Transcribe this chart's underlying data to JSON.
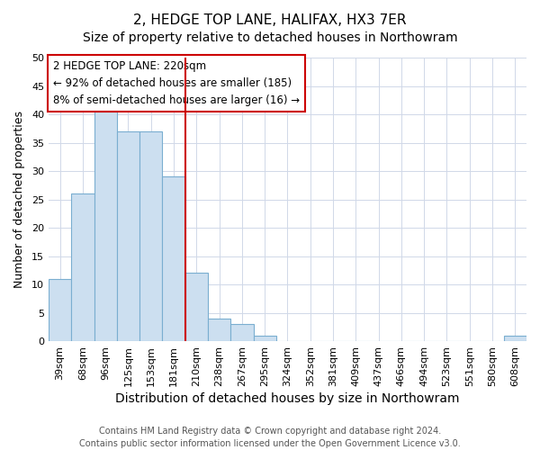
{
  "title": "2, HEDGE TOP LANE, HALIFAX, HX3 7ER",
  "subtitle": "Size of property relative to detached houses in Northowram",
  "xlabel": "Distribution of detached houses by size in Northowram",
  "ylabel": "Number of detached properties",
  "footnote1": "Contains HM Land Registry data © Crown copyright and database right 2024.",
  "footnote2": "Contains public sector information licensed under the Open Government Licence v3.0.",
  "categories": [
    "39sqm",
    "68sqm",
    "96sqm",
    "125sqm",
    "153sqm",
    "181sqm",
    "210sqm",
    "238sqm",
    "267sqm",
    "295sqm",
    "324sqm",
    "352sqm",
    "381sqm",
    "409sqm",
    "437sqm",
    "466sqm",
    "494sqm",
    "523sqm",
    "551sqm",
    "580sqm",
    "608sqm"
  ],
  "values": [
    11,
    26,
    41,
    37,
    37,
    29,
    12,
    4,
    3,
    1,
    0,
    0,
    0,
    0,
    0,
    0,
    0,
    0,
    0,
    0,
    1
  ],
  "bar_color": "#ccdff0",
  "bar_edge_color": "#7aaed0",
  "vline_x": 6,
  "vline_color": "#cc0000",
  "annotation_text": "2 HEDGE TOP LANE: 220sqm\n← 92% of detached houses are smaller (185)\n8% of semi-detached houses are larger (16) →",
  "annotation_box_color": "white",
  "annotation_box_edge_color": "#cc0000",
  "ylim": [
    0,
    50
  ],
  "yticks": [
    0,
    5,
    10,
    15,
    20,
    25,
    30,
    35,
    40,
    45,
    50
  ],
  "bg_color": "#ffffff",
  "grid_color": "#d0d8e8",
  "title_fontsize": 11,
  "subtitle_fontsize": 10,
  "xlabel_fontsize": 10,
  "ylabel_fontsize": 9,
  "tick_fontsize": 8,
  "annot_fontsize": 8.5,
  "footnote_fontsize": 7
}
